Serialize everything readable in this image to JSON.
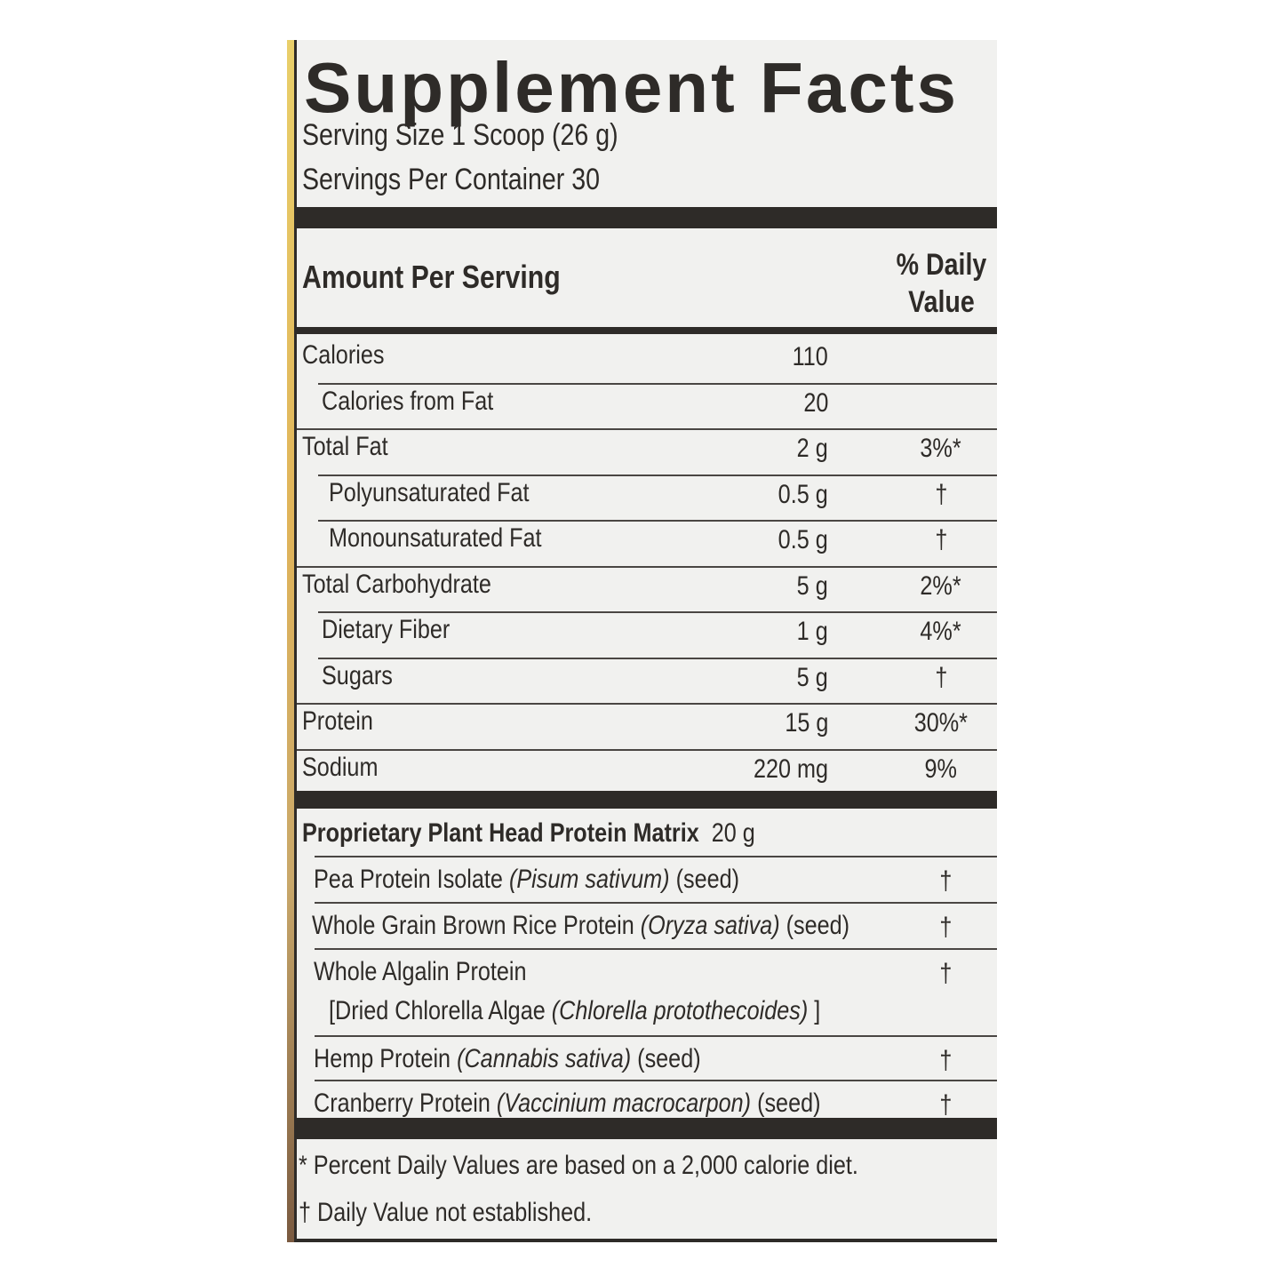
{
  "title": "Supplement Facts",
  "serving_size": "Serving Size 1 Scoop (26 g)",
  "servings_per_container": "Servings Per Container 30",
  "header": {
    "amount": "Amount Per Serving",
    "dv_line1": "% Daily",
    "dv_line2": "Value"
  },
  "rows": [
    {
      "name": "Calories",
      "amount": "110",
      "dv": ""
    },
    {
      "name": "Calories from Fat",
      "amount": "20",
      "dv": ""
    },
    {
      "name": "Total Fat",
      "amount": "2 g",
      "dv": "3%*"
    },
    {
      "name": "Polyunsaturated Fat",
      "amount": "0.5 g",
      "dv": "†"
    },
    {
      "name": "Monounsaturated Fat",
      "amount": "0.5 g",
      "dv": "†"
    },
    {
      "name": "Total Carbohydrate",
      "amount": "5 g",
      "dv": "2%*"
    },
    {
      "name": "Dietary Fiber",
      "amount": "1 g",
      "dv": "4%*"
    },
    {
      "name": "Sugars",
      "amount": "5 g",
      "dv": "†"
    },
    {
      "name": "Protein",
      "amount": "15 g",
      "dv": "30%*"
    },
    {
      "name": "Sodium",
      "amount": "220 mg",
      "dv": "9%"
    }
  ],
  "blend": {
    "name": "Proprietary Plant Head Protein Matrix",
    "amount": "20 g"
  },
  "ingredients": [
    {
      "name": "Pea Protein Isolate",
      "latin": "(Pisum sativum)",
      "part": "(seed)",
      "dv": "†"
    },
    {
      "name": "Whole Grain Brown Rice Protein",
      "latin": "(Oryza sativa)",
      "part": "(seed)",
      "dv": "†"
    },
    {
      "name": "Whole Algalin Protein",
      "line2_prefix": "[Dried Chlorella Algae",
      "latin": "(Chlorella protothecoides)",
      "line2_suffix": "]",
      "dv": "†"
    },
    {
      "name": "Hemp Protein",
      "latin": "(Cannabis sativa)",
      "part": "(seed)",
      "dv": "†"
    },
    {
      "name": "Cranberry Protein",
      "latin": "(Vaccinium macrocarpon)",
      "part": "(seed)",
      "dv": "†"
    }
  ],
  "footnotes": [
    "* Percent Daily Values are based on a 2,000 calorie diet.",
    "† Daily Value not established."
  ],
  "colors": {
    "ink": "#2e2b28",
    "panel": "#f1f1ef"
  }
}
